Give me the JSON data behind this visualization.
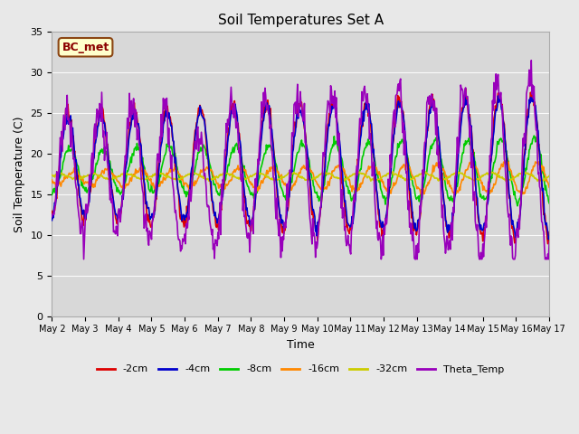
{
  "title": "Soil Temperatures Set A",
  "xlabel": "Time",
  "ylabel": "Soil Temperature (C)",
  "ylim": [
    0,
    35
  ],
  "yticks": [
    0,
    5,
    10,
    15,
    20,
    25,
    30,
    35
  ],
  "annotation": "BC_met",
  "background_color": "#e8e8e8",
  "plot_bg_color": "#d8d8d8",
  "series": [
    {
      "label": "-2cm",
      "color": "#dd0000",
      "lw": 1.2,
      "zorder": 4
    },
    {
      "label": "-4cm",
      "color": "#0000cc",
      "lw": 1.2,
      "zorder": 4
    },
    {
      "label": "-8cm",
      "color": "#00cc00",
      "lw": 1.2,
      "zorder": 3
    },
    {
      "label": "-16cm",
      "color": "#ff8800",
      "lw": 1.2,
      "zorder": 3
    },
    {
      "label": "-32cm",
      "color": "#cccc00",
      "lw": 1.2,
      "zorder": 3
    },
    {
      "label": "Theta_Temp",
      "color": "#9900bb",
      "lw": 1.2,
      "zorder": 5
    }
  ],
  "x_tick_labels": [
    "May 2",
    "May 3",
    "May 4",
    "May 5",
    "May 6",
    "May 7",
    "May 8",
    "May 9",
    "May 10",
    "May 11",
    "May 12",
    "May 13",
    "May 14",
    "May 15",
    "May 16",
    "May 17"
  ],
  "num_days": 15,
  "points_per_day": 48
}
